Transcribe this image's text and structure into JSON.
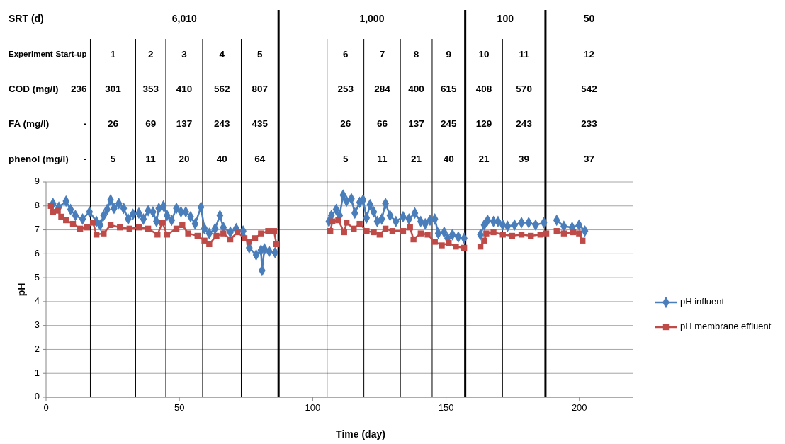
{
  "chart_data": {
    "type": "line",
    "xlabel": "Time (day)",
    "ylabel": "pH",
    "xlim": [
      0,
      220
    ],
    "xticks": [
      0,
      50,
      100,
      150,
      200
    ],
    "ylim": [
      0,
      9
    ],
    "yticks": [
      0,
      1,
      2,
      3,
      4,
      5,
      6,
      7,
      8,
      9
    ],
    "grid": "y",
    "legend": "right",
    "line_style": "solid",
    "series": [
      {
        "name": "pH influent",
        "color": "#4a7ebb",
        "marker": "diamond",
        "x": [
          2.6,
          4.8,
          7.5,
          9.2,
          11,
          13.7,
          16.3,
          18.9,
          20.3,
          21.6,
          22.9,
          24.2,
          25.5,
          27.3,
          29.1,
          30.8,
          32.6,
          34.8,
          36.5,
          38.3,
          40.1,
          41.4,
          42.3,
          44,
          45.4,
          47.1,
          48.9,
          50.6,
          52.4,
          54.2,
          55.9,
          58.1,
          59.4,
          61.2,
          63.4,
          65.2,
          66.5,
          69.1,
          71.3,
          73.9,
          76.2,
          78.8,
          80.6,
          81,
          81.9,
          83.7,
          85.9,
          96,
          106.1,
          107,
          108.8,
          110.1,
          111.4,
          112.7,
          114.5,
          115.8,
          117.6,
          118.9,
          120.2,
          121.5,
          122.9,
          124.2,
          125.9,
          127.3,
          129,
          131.2,
          133.9,
          136.1,
          138.3,
          140.5,
          142.2,
          144,
          145.8,
          147.1,
          149.3,
          150.6,
          152.4,
          154.6,
          156.8,
          160,
          162.9,
          164.3,
          165.6,
          167.8,
          169.5,
          171.3,
          173.1,
          175.7,
          178.3,
          181,
          183.6,
          186.7,
          189,
          191.5,
          194.2,
          197.3,
          199.9,
          202.1
        ],
        "values": [
          8.1,
          7.95,
          8.2,
          7.85,
          7.6,
          7.45,
          7.75,
          7.35,
          7.2,
          7.6,
          7.85,
          8.25,
          7.9,
          8.1,
          7.9,
          7.45,
          7.65,
          7.7,
          7.45,
          7.8,
          7.75,
          7.35,
          7.9,
          8.0,
          7.6,
          7.4,
          7.9,
          7.75,
          7.75,
          7.55,
          7.25,
          7.95,
          7.05,
          6.85,
          7.05,
          7.6,
          7.1,
          6.9,
          7.05,
          6.95,
          6.25,
          5.95,
          6.15,
          5.3,
          6.2,
          6.1,
          6.05,
          null,
          7.35,
          7.6,
          7.85,
          7.6,
          8.45,
          8.2,
          8.3,
          7.7,
          8.15,
          8.25,
          7.5,
          8.05,
          7.75,
          7.35,
          7.45,
          8.1,
          7.6,
          7.35,
          7.55,
          7.45,
          7.7,
          7.35,
          7.25,
          7.4,
          7.45,
          6.85,
          6.9,
          6.65,
          6.8,
          6.7,
          6.65,
          null,
          6.8,
          7.2,
          7.4,
          7.35,
          7.35,
          7.2,
          7.15,
          7.2,
          7.3,
          7.3,
          7.2,
          7.3,
          null,
          7.4,
          7.15,
          7.1,
          7.2,
          6.95
        ]
      },
      {
        "name": "pH membrane effluent",
        "color": "#be4b48",
        "marker": "square",
        "x": [
          1.8,
          2.6,
          4.4,
          5.7,
          7.5,
          10.1,
          12.8,
          15.4,
          17.6,
          18.9,
          21.6,
          24.2,
          27.7,
          31.3,
          34.8,
          38.3,
          41.8,
          43.6,
          45.4,
          48.9,
          51.1,
          53.3,
          56.8,
          59.4,
          61.2,
          63.9,
          66.5,
          69.1,
          71.8,
          74.4,
          76.2,
          78.4,
          80.6,
          83.3,
          85.5,
          86.4,
          96,
          106.6,
          107.4,
          109.6,
          111.8,
          112.7,
          115.4,
          117.6,
          120.2,
          122.9,
          125.1,
          127.3,
          129.9,
          133.9,
          136.5,
          137.8,
          140.5,
          143.1,
          145.8,
          148.4,
          151,
          153.7,
          156.8,
          160,
          162.9,
          164.3,
          165.1,
          167.8,
          171.3,
          174.8,
          178.3,
          181.8,
          185.4,
          187.6,
          189,
          191.5,
          194.2,
          197.7,
          199.9,
          201.2
        ],
        "values": [
          8.0,
          7.75,
          7.8,
          7.55,
          7.4,
          7.25,
          7.05,
          7.1,
          7.3,
          6.8,
          6.85,
          7.2,
          7.1,
          7.05,
          7.1,
          7.05,
          6.8,
          7.3,
          6.8,
          7.05,
          7.2,
          6.85,
          6.75,
          6.55,
          6.4,
          6.75,
          6.85,
          6.6,
          6.9,
          6.65,
          6.5,
          6.65,
          6.85,
          6.95,
          6.95,
          6.4,
          null,
          6.95,
          7.35,
          7.4,
          6.9,
          7.3,
          7.05,
          7.25,
          6.95,
          6.9,
          6.8,
          7.05,
          6.95,
          6.95,
          7.1,
          6.6,
          6.85,
          6.8,
          6.5,
          6.35,
          6.45,
          6.3,
          6.25,
          null,
          6.3,
          6.55,
          6.85,
          6.9,
          6.8,
          6.75,
          6.8,
          6.75,
          6.8,
          6.85,
          null,
          6.95,
          6.85,
          6.9,
          6.85,
          6.55
        ]
      }
    ],
    "ref_lines": [
      {
        "axis": "x",
        "value": 16.6,
        "color": "#000000"
      },
      {
        "axis": "x",
        "value": 33.6,
        "color": "#000000"
      },
      {
        "axis": "x",
        "value": 44.9,
        "color": "#000000"
      },
      {
        "axis": "x",
        "value": 58.7,
        "color": "#000000"
      },
      {
        "axis": "x",
        "value": 73.2,
        "color": "#000000"
      },
      {
        "axis": "x",
        "value": 87.2,
        "color": "#000000"
      },
      {
        "axis": "x",
        "value": 105.4,
        "color": "#000000"
      },
      {
        "axis": "x",
        "value": 119.2,
        "color": "#000000"
      },
      {
        "axis": "x",
        "value": 132.9,
        "color": "#000000"
      },
      {
        "axis": "x",
        "value": 144.8,
        "color": "#000000"
      },
      {
        "axis": "x",
        "value": 157.2,
        "color": "#000000"
      },
      {
        "axis": "x",
        "value": 171.2,
        "color": "#000000"
      },
      {
        "axis": "x",
        "value": 187.3,
        "color": "#000000"
      }
    ],
    "annotations": [
      "SRT (d)",
      "6,010",
      "1,000",
      "100",
      "50",
      "Experiment",
      "Start-up",
      "1",
      "2",
      "3",
      "4",
      "5",
      "6",
      "7",
      "8",
      "9",
      "10",
      "11",
      "12",
      "COD (mg/l)",
      "236",
      "301",
      "353",
      "410",
      "562",
      "807",
      "253",
      "284",
      "400",
      "615",
      "408",
      "570",
      "542",
      "FA (mg/l)",
      "-",
      "26",
      "69",
      "137",
      "243",
      "435",
      "26",
      "66",
      "137",
      "245",
      "129",
      "243",
      "233",
      "phenol (mg/l)",
      "-",
      "5",
      "11",
      "20",
      "40",
      "64",
      "5",
      "11",
      "21",
      "40",
      "21",
      "39",
      "37"
    ]
  }
}
